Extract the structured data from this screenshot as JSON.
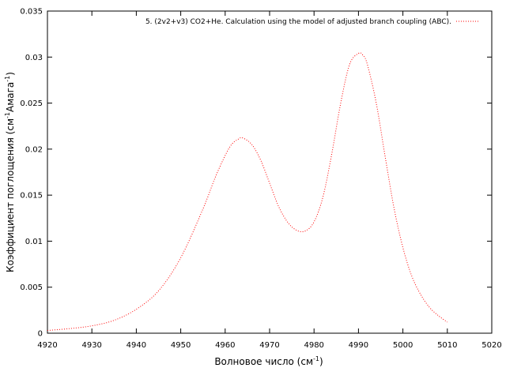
{
  "chart_data": {
    "type": "line",
    "title": "",
    "xlabel": "Волновое число (см",
    "xlabel_sup": "-1",
    "xlabel_tail": ")",
    "ylabel": "Коэффициент поглощения (см",
    "ylabel_sup1": "-1",
    "ylabel_mid": "Амага",
    "ylabel_sup2": "-1",
    "ylabel_tail": ")",
    "xlim": [
      4920,
      5020
    ],
    "ylim": [
      0,
      0.035
    ],
    "x_ticks": [
      "4920",
      "4930",
      "4940",
      "4950",
      "4960",
      "4970",
      "4980",
      "4990",
      "5000",
      "5010",
      "5020"
    ],
    "y_ticks": [
      "0",
      "0.005",
      "0.01",
      "0.015",
      "0.02",
      "0.025",
      "0.03",
      "0.035"
    ],
    "grid": false,
    "legend_position": "top-right",
    "series": [
      {
        "name": "5. (2v2+v3) CO2+He. Calculation using the model of adjusted branch coupling (ABC).",
        "color": "#ff0000",
        "style": "dotted",
        "x": [
          4920,
          4925,
          4930,
          4935,
          4940,
          4945,
          4950,
          4955,
          4958,
          4961,
          4963,
          4964,
          4966,
          4968,
          4970,
          4972,
          4974,
          4976,
          4978,
          4980,
          4982,
          4984,
          4986,
          4988,
          4990,
          4991,
          4992,
          4994,
          4996,
          4998,
          5000,
          5002,
          5004,
          5006,
          5008,
          5010
        ],
        "y": [
          0.0003,
          0.0005,
          0.0008,
          0.0014,
          0.0026,
          0.0046,
          0.0082,
          0.0135,
          0.0172,
          0.0202,
          0.0211,
          0.0212,
          0.0205,
          0.0188,
          0.0163,
          0.0138,
          0.0121,
          0.0112,
          0.0111,
          0.0121,
          0.0148,
          0.0195,
          0.025,
          0.0292,
          0.0304,
          0.0302,
          0.0292,
          0.025,
          0.0192,
          0.0136,
          0.0093,
          0.0062,
          0.0042,
          0.0028,
          0.0019,
          0.0012
        ]
      }
    ]
  }
}
